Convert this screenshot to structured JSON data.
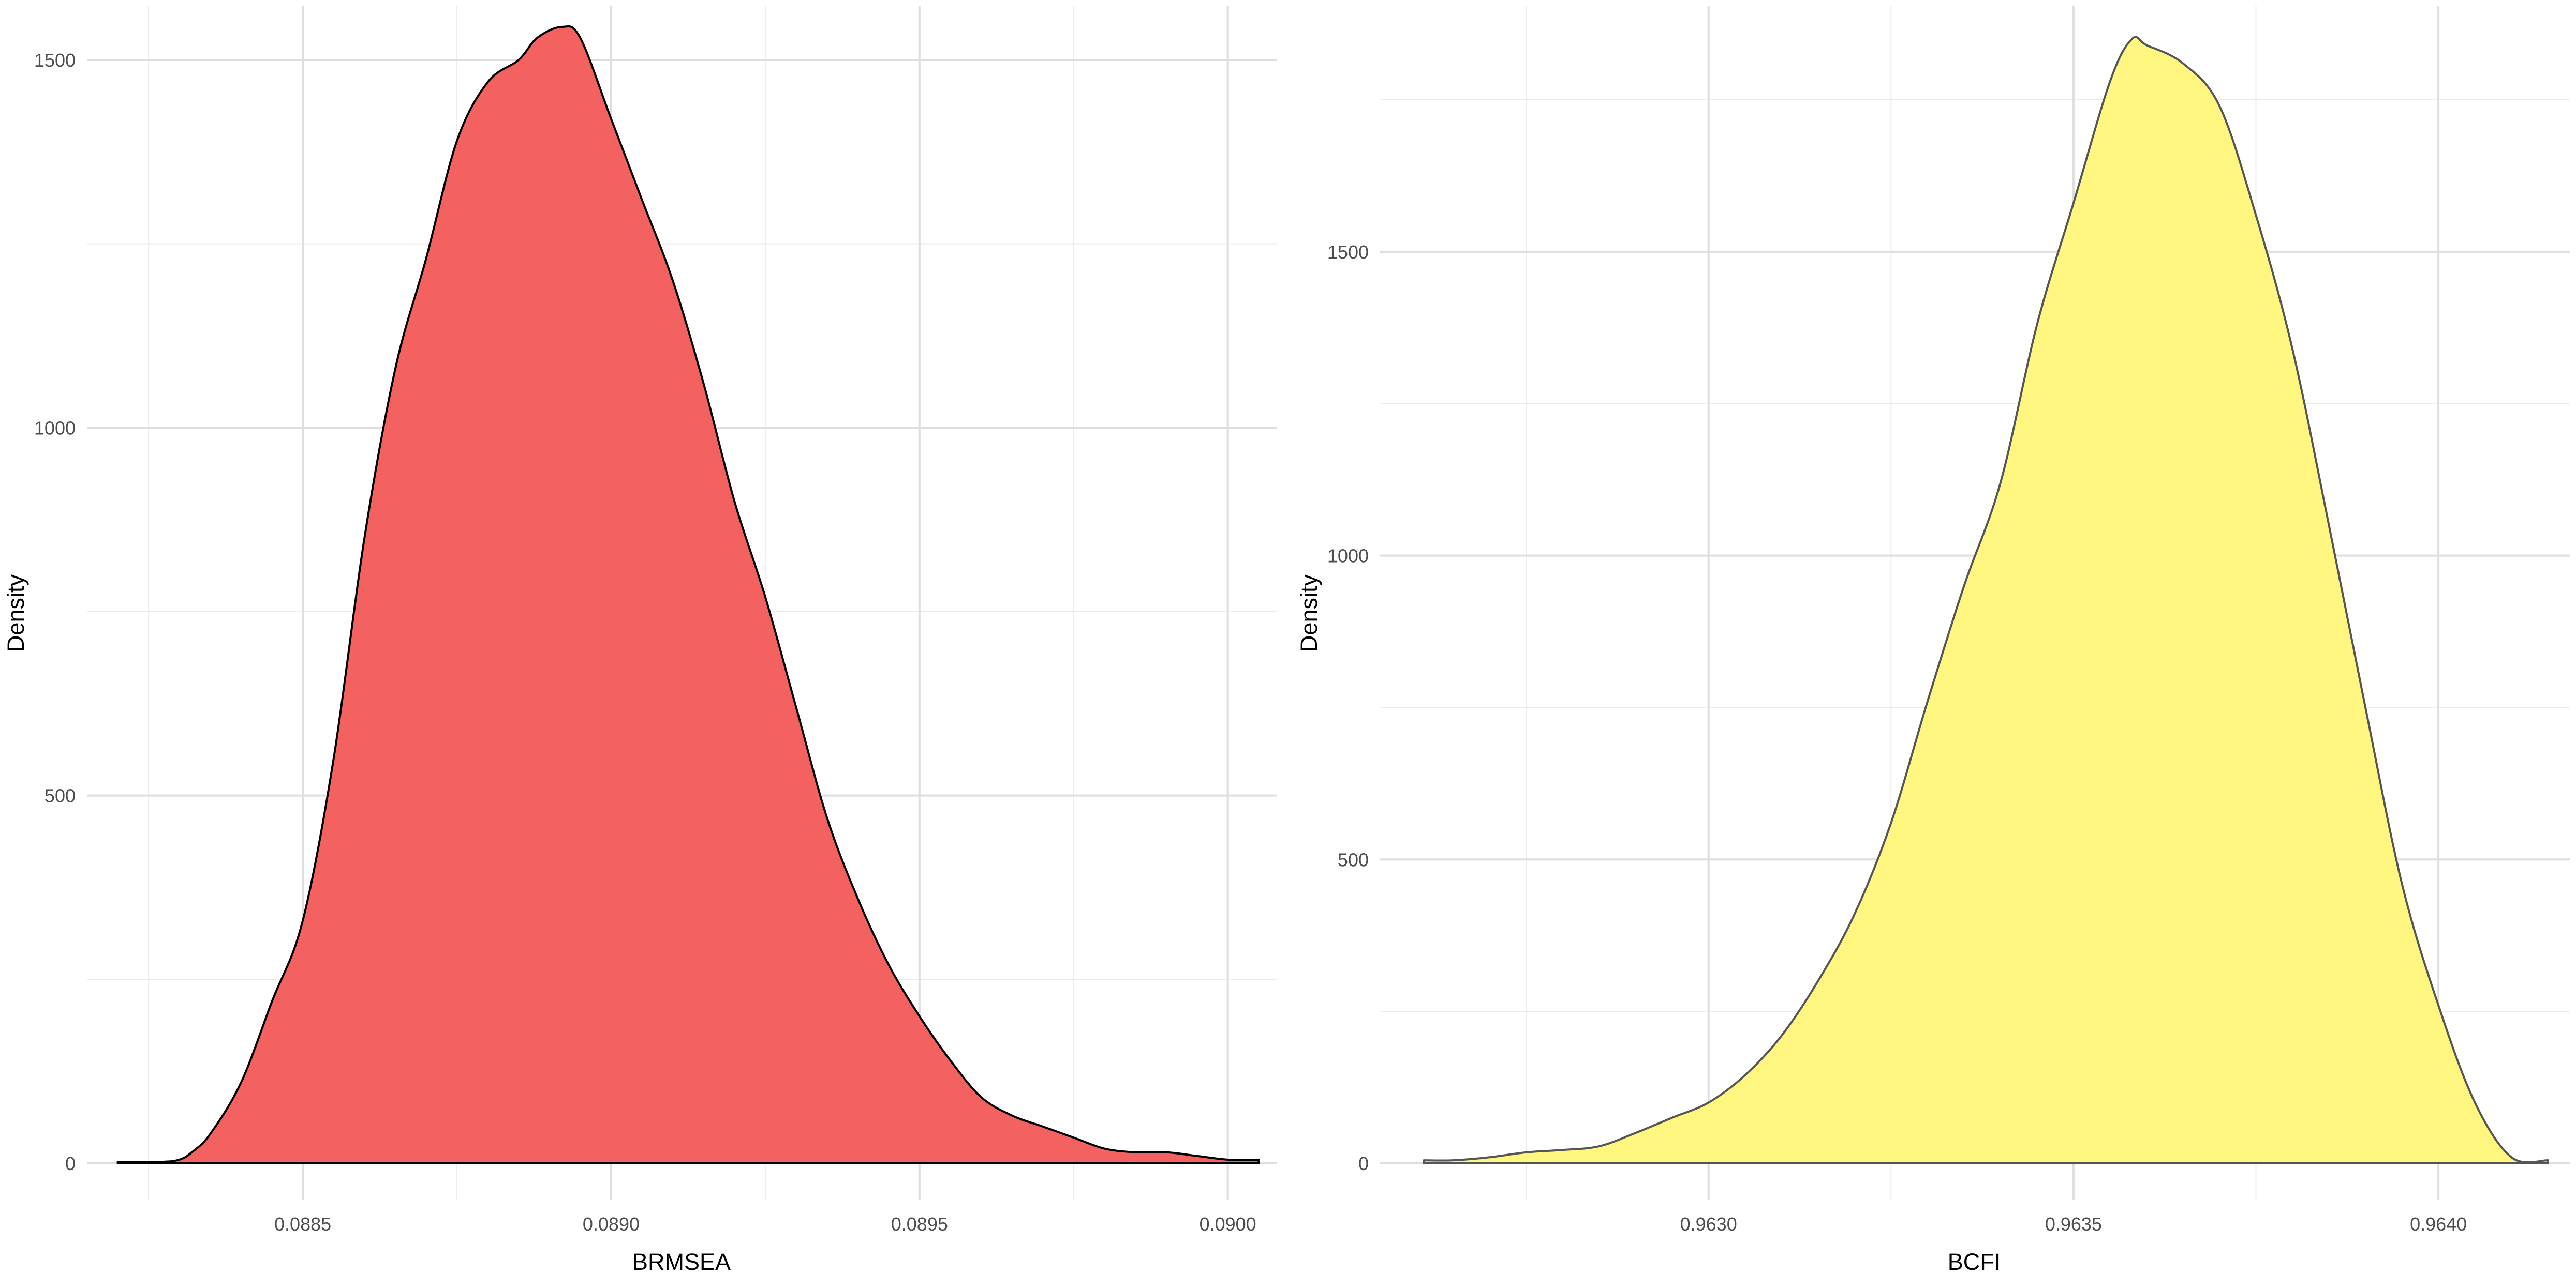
{
  "chart_data": [
    {
      "type": "area",
      "title": "",
      "xlabel": "BRMSEA",
      "ylabel": "Density",
      "fill_color": "#F46161",
      "line_color": "#000000",
      "xlim": [
        0.08815,
        0.09008
      ],
      "ylim": [
        0,
        1545
      ],
      "x_ticks": [
        {
          "value": 0.0885,
          "label": "0.0885"
        },
        {
          "value": 0.089,
          "label": "0.0890"
        },
        {
          "value": 0.0895,
          "label": "0.0895"
        },
        {
          "value": 0.09,
          "label": "0.0900"
        }
      ],
      "y_ticks": [
        {
          "value": 0,
          "label": "0"
        },
        {
          "value": 500,
          "label": "500"
        },
        {
          "value": 1000,
          "label": "1000"
        },
        {
          "value": 1500,
          "label": "1500"
        }
      ],
      "grid": true,
      "x": [
        0.0882,
        0.08827,
        0.0883,
        0.08832,
        0.08835,
        0.0884,
        0.08845,
        0.0885,
        0.08855,
        0.0886,
        0.08865,
        0.0887,
        0.08875,
        0.0888,
        0.08885,
        0.08888,
        0.08892,
        0.08895,
        0.089,
        0.08905,
        0.0891,
        0.08915,
        0.0892,
        0.08925,
        0.0893,
        0.08935,
        0.0894,
        0.08945,
        0.0895,
        0.08955,
        0.0896,
        0.08965,
        0.0897,
        0.08975,
        0.0898,
        0.08985,
        0.0899,
        0.08995,
        0.09,
        0.09005
      ],
      "y": [
        2,
        2,
        5,
        15,
        40,
        110,
        220,
        330,
        550,
        850,
        1080,
        1230,
        1390,
        1470,
        1500,
        1530,
        1545,
        1530,
        1420,
        1310,
        1200,
        1060,
        900,
        770,
        620,
        470,
        360,
        270,
        200,
        140,
        90,
        65,
        50,
        35,
        20,
        15,
        15,
        10,
        5,
        5
      ]
    },
    {
      "type": "area",
      "title": "",
      "xlabel": "BCFI",
      "ylabel": "Density",
      "fill_color": "#FFF67F",
      "line_color": "#555555",
      "xlim": [
        0.96255,
        0.96418
      ],
      "ylim": [
        0,
        1870
      ],
      "x_ticks": [
        {
          "value": 0.963,
          "label": "0.9630"
        },
        {
          "value": 0.9635,
          "label": "0.9635"
        },
        {
          "value": 0.964,
          "label": "0.9640"
        }
      ],
      "y_ticks": [
        {
          "value": 0,
          "label": "0"
        },
        {
          "value": 500,
          "label": "500"
        },
        {
          "value": 1000,
          "label": "1000"
        },
        {
          "value": 1500,
          "label": "1500"
        }
      ],
      "grid": true,
      "x": [
        0.96261,
        0.96265,
        0.9627,
        0.96275,
        0.9628,
        0.96285,
        0.9629,
        0.96295,
        0.963,
        0.96305,
        0.9631,
        0.96315,
        0.9632,
        0.96325,
        0.9633,
        0.96335,
        0.9634,
        0.96345,
        0.9635,
        0.96355,
        0.96358,
        0.9636,
        0.96365,
        0.9637,
        0.96375,
        0.9638,
        0.96385,
        0.9639,
        0.96395,
        0.964,
        0.96405,
        0.9641,
        0.96415
      ],
      "y": [
        5,
        5,
        10,
        18,
        22,
        28,
        50,
        75,
        100,
        145,
        210,
        300,
        410,
        560,
        760,
        950,
        1120,
        1380,
        1580,
        1780,
        1850,
        1840,
        1810,
        1740,
        1560,
        1340,
        1050,
        750,
        460,
        260,
        100,
        10,
        5
      ]
    }
  ]
}
